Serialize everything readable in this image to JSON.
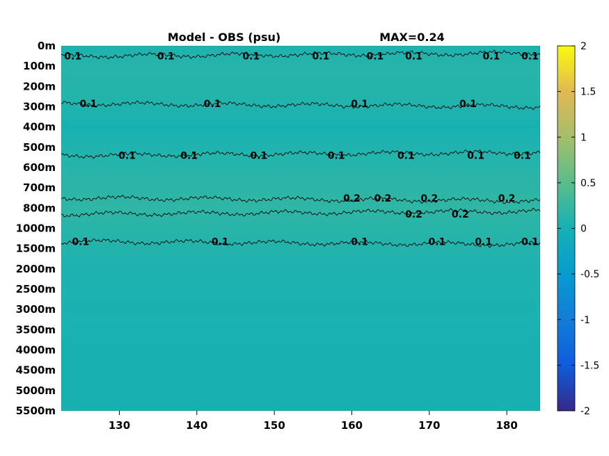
{
  "chart_data": {
    "type": "heatmap",
    "title": "Model - OBS (psu)",
    "subtitle": "MAX=0.24",
    "xlabel": "",
    "ylabel": "",
    "x_ticks": [
      130,
      140,
      150,
      160,
      170,
      180
    ],
    "xlim": [
      122.5,
      184.3
    ],
    "y_ticks": [
      "0m",
      "100m",
      "200m",
      "300m",
      "400m",
      "500m",
      "600m",
      "700m",
      "800m",
      "1000m",
      "1500m",
      "2000m",
      "2500m",
      "3000m",
      "3500m",
      "4000m",
      "4500m",
      "5000m",
      "5500m"
    ],
    "colorbar": {
      "range": [
        -2,
        2
      ],
      "ticks": [
        2,
        1.5,
        1,
        0.5,
        0,
        -0.5,
        -1,
        -1.5,
        -2
      ],
      "colormap": "parula"
    },
    "field": [
      {
        "depth": "0m",
        "value": 0.05
      },
      {
        "depth": "100m",
        "value": 0.14
      },
      {
        "depth": "200m",
        "value": 0.12
      },
      {
        "depth": "300m",
        "value": 0.08
      },
      {
        "depth": "400m",
        "value": 0.02
      },
      {
        "depth": "500m",
        "value": 0.07
      },
      {
        "depth": "600m",
        "value": 0.13
      },
      {
        "depth": "700m",
        "value": 0.17
      },
      {
        "depth": "800m",
        "value": 0.19
      },
      {
        "depth": "1000m",
        "value": 0.14
      },
      {
        "depth": "1500m",
        "value": 0.1
      },
      {
        "depth": "2000m",
        "value": 0.06
      },
      {
        "depth": "2500m",
        "value": 0.05
      },
      {
        "depth": "3000m",
        "value": 0.04
      },
      {
        "depth": "3500m",
        "value": 0.03
      },
      {
        "depth": "4000m",
        "value": 0.02
      },
      {
        "depth": "4500m",
        "value": 0.02
      },
      {
        "depth": "5000m",
        "value": 0.02
      },
      {
        "depth": "5500m",
        "value": 0.02
      }
    ],
    "contours": [
      {
        "level": "0.1",
        "depth_index": 0.5,
        "label_x": [
          124,
          136,
          147,
          156,
          163,
          168,
          178,
          183
        ]
      },
      {
        "level": "0.1",
        "depth_index": 2.85,
        "label_x": [
          126,
          142,
          161,
          175
        ]
      },
      {
        "level": "0.1",
        "depth_index": 5.4,
        "label_x": [
          131,
          139,
          148,
          158,
          167,
          176,
          182
        ]
      },
      {
        "level": "0.2",
        "depth_index": 7.5,
        "label_x": [
          160,
          164,
          170,
          180
        ]
      },
      {
        "level": "0.2",
        "depth_index": 8.3,
        "label_x": [
          168,
          174
        ]
      },
      {
        "level": "0.1",
        "depth_index": 9.65,
        "label_x": [
          125,
          143,
          161,
          171,
          177,
          183
        ]
      }
    ]
  }
}
